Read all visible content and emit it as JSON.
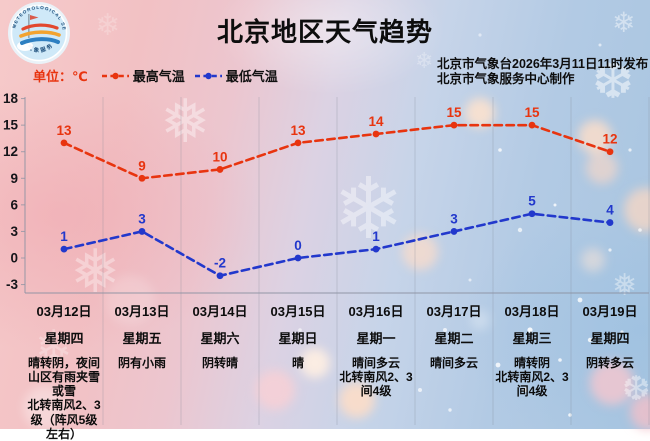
{
  "poster": {
    "title": "北京地区天气趋势",
    "issued_line1": "北京市气象台2026年3月11日11时发布",
    "issued_line2": "北京市气象服务中心制作",
    "unit_label": "单位：℃",
    "logo": {
      "ring_text_top": "METEOROLOGICAL SERVICE",
      "ring_text_bottom": "气象服务"
    }
  },
  "legend": {
    "max_label": "最高气温",
    "min_label": "最低气温"
  },
  "colors": {
    "max": "#e8340f",
    "min": "#2238cc",
    "unit": "#e8340f",
    "text": "#111111",
    "axis": "#8d93a3"
  },
  "chart_data": {
    "type": "line",
    "title": "北京地区天气趋势",
    "ylabel": "℃",
    "x": [
      "03月12日",
      "03月13日",
      "03月14日",
      "03月15日",
      "03月16日",
      "03月17日",
      "03月18日",
      "03月19日"
    ],
    "series": [
      {
        "name": "最高气温",
        "color": "#e8340f",
        "values": [
          13,
          9,
          10,
          13,
          14,
          15,
          15,
          12
        ]
      },
      {
        "name": "最低气温",
        "color": "#2238cc",
        "values": [
          1,
          3,
          -2,
          0,
          1,
          3,
          5,
          4
        ]
      }
    ],
    "ylim": [
      -3,
      18
    ],
    "yticks": [
      18,
      15,
      12,
      9,
      6,
      3,
      0,
      -3
    ],
    "grid": "vertical",
    "line_style": "dashed",
    "legend_position": "top-left"
  },
  "days": [
    {
      "date": "03月12日",
      "weekday": "星期四",
      "weather": "晴转阴，夜间山区有雨夹雪或雪",
      "wind": "北转南风2、3级（阵风5级左右）"
    },
    {
      "date": "03月13日",
      "weekday": "星期五",
      "weather": "阴有小雨",
      "wind": ""
    },
    {
      "date": "03月14日",
      "weekday": "星期六",
      "weather": "阴转晴",
      "wind": ""
    },
    {
      "date": "03月15日",
      "weekday": "星期日",
      "weather": "晴",
      "wind": ""
    },
    {
      "date": "03月16日",
      "weekday": "星期一",
      "weather": "晴间多云",
      "wind": "北转南风2、3间4级"
    },
    {
      "date": "03月17日",
      "weekday": "星期二",
      "weather": "晴间多云",
      "wind": ""
    },
    {
      "date": "03月18日",
      "weekday": "星期三",
      "weather": "晴转阴",
      "wind": "北转南风2、3间4级"
    },
    {
      "date": "03月19日",
      "weekday": "星期四",
      "weather": "阴转多云",
      "wind": ""
    }
  ]
}
